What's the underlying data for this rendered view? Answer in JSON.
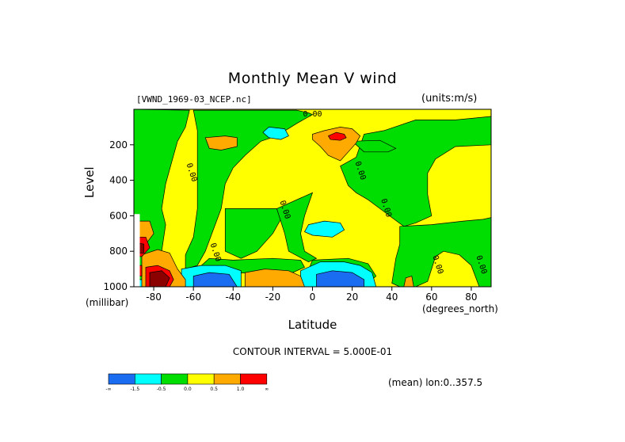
{
  "title": "Monthly Mean V wind",
  "dataset": "[VWND_1969-03_NCEP.nc]",
  "units": "(units:m/s)",
  "footer": {
    "contour_interval": "CONTOUR INTERVAL = 5.000E-01",
    "mean_note": "(mean) lon:0..357.5"
  },
  "colors": {
    "blue": "#1a6cf0",
    "cyan": "#00ffff",
    "green": "#00dd00",
    "yellow": "#ffff00",
    "orange": "#ffaa00",
    "red": "#ff0000",
    "darkred": "#8b0000"
  },
  "chart_data": {
    "type": "heatmap",
    "title": "Monthly Mean V wind",
    "xlabel": "Latitude",
    "x_unit": "(degrees_north)",
    "ylabel": "Level",
    "y_unit": "(millibar)",
    "xlim": [
      -90,
      90
    ],
    "ylim": [
      1000,
      0
    ],
    "x_ticks": [
      -80,
      -60,
      -40,
      -20,
      0,
      20,
      40,
      60,
      80
    ],
    "x_tick_labels": [
      "-80",
      "-60",
      "-40",
      "-20",
      "0",
      "20",
      "40",
      "60",
      "80"
    ],
    "y_ticks": [
      200,
      400,
      600,
      800,
      1000
    ],
    "y_tick_labels": [
      "200",
      "400",
      "600",
      "800",
      "1000"
    ],
    "contour_labels": [
      {
        "x": 0,
        "y": 40,
        "text": "0.00"
      },
      {
        "x": -62,
        "y": 360,
        "text": "0.00"
      },
      {
        "x": 23,
        "y": 350,
        "text": "0.00"
      },
      {
        "x": -15,
        "y": 570,
        "text": "0.00"
      },
      {
        "x": 36,
        "y": 560,
        "text": "0.00"
      },
      {
        "x": -50,
        "y": 810,
        "text": "0.00"
      },
      {
        "x": 62,
        "y": 880,
        "text": "0.00"
      },
      {
        "x": 84,
        "y": 880,
        "text": "0.00"
      }
    ],
    "colorbar": {
      "labels": [
        "-∞",
        "-1.5",
        "-0.5",
        "0.0",
        "0.5",
        "1.0",
        "∞"
      ],
      "colors": [
        "#1a6cf0",
        "#00ffff",
        "#00dd00",
        "#ffff00",
        "#ffaa00",
        "#ff0000"
      ]
    },
    "regions": [
      {
        "fill": "yellow",
        "points": [
          [
            -90,
            0
          ],
          [
            90,
            0
          ],
          [
            90,
            1000
          ],
          [
            -90,
            1000
          ]
        ]
      },
      {
        "fill": "green",
        "points": [
          [
            -90,
            0
          ],
          [
            -62,
            5
          ],
          [
            -64,
            100
          ],
          [
            -68,
            180
          ],
          [
            -70,
            260
          ],
          [
            -74,
            420
          ],
          [
            -76,
            560
          ],
          [
            -74,
            650
          ],
          [
            -76,
            800
          ],
          [
            -80,
            900
          ],
          [
            -86,
            960
          ],
          [
            -90,
            960
          ]
        ]
      },
      {
        "fill": "green",
        "points": [
          [
            -60,
            5
          ],
          [
            -8,
            5
          ],
          [
            -2,
            20
          ],
          [
            0,
            30
          ],
          [
            -8,
            80
          ],
          [
            -18,
            150
          ],
          [
            -26,
            180
          ],
          [
            -34,
            260
          ],
          [
            -40,
            330
          ],
          [
            -44,
            420
          ],
          [
            -46,
            560
          ],
          [
            -50,
            680
          ],
          [
            -54,
            800
          ],
          [
            -58,
            880
          ],
          [
            -64,
            900
          ],
          [
            -64,
            820
          ],
          [
            -60,
            720
          ],
          [
            -58,
            560
          ],
          [
            -58,
            360
          ],
          [
            -58,
            250
          ],
          [
            -58,
            120
          ]
        ]
      },
      {
        "fill": "green",
        "points": [
          [
            -44,
            560
          ],
          [
            -18,
            560
          ],
          [
            -16,
            620
          ],
          [
            -20,
            700
          ],
          [
            -28,
            800
          ],
          [
            -36,
            840
          ],
          [
            -44,
            800
          ]
        ]
      },
      {
        "fill": "green",
        "points": [
          [
            -52,
            840
          ],
          [
            -40,
            850
          ],
          [
            -20,
            840
          ],
          [
            -6,
            850
          ],
          [
            -4,
            890
          ],
          [
            -10,
            920
          ],
          [
            -30,
            920
          ],
          [
            -52,
            930
          ],
          [
            -58,
            900
          ]
        ]
      },
      {
        "fill": "green",
        "points": [
          [
            -18,
            560
          ],
          [
            -14,
            540
          ],
          [
            -6,
            500
          ],
          [
            0,
            470
          ],
          [
            -4,
            600
          ],
          [
            -6,
            700
          ],
          [
            -4,
            800
          ],
          [
            2,
            840
          ],
          [
            -2,
            860
          ],
          [
            -12,
            800
          ],
          [
            -14,
            700
          ]
        ]
      },
      {
        "fill": "green",
        "points": [
          [
            14,
            320
          ],
          [
            22,
            270
          ],
          [
            26,
            140
          ],
          [
            36,
            120
          ],
          [
            52,
            60
          ],
          [
            72,
            60
          ],
          [
            90,
            40
          ],
          [
            90,
            200
          ],
          [
            72,
            210
          ],
          [
            62,
            280
          ],
          [
            58,
            360
          ],
          [
            58,
            480
          ],
          [
            60,
            600
          ],
          [
            52,
            640
          ],
          [
            46,
            660
          ],
          [
            40,
            610
          ],
          [
            34,
            560
          ],
          [
            28,
            510
          ],
          [
            22,
            470
          ],
          [
            18,
            430
          ]
        ]
      },
      {
        "fill": "green",
        "points": [
          [
            44,
            660
          ],
          [
            60,
            650
          ],
          [
            76,
            630
          ],
          [
            86,
            620
          ],
          [
            90,
            610
          ],
          [
            90,
            1000
          ],
          [
            84,
            1000
          ],
          [
            80,
            880
          ],
          [
            74,
            820
          ],
          [
            66,
            800
          ],
          [
            62,
            830
          ],
          [
            60,
            900
          ],
          [
            58,
            970
          ],
          [
            52,
            1000
          ],
          [
            44,
            1000
          ],
          [
            40,
            980
          ],
          [
            42,
            840
          ],
          [
            44,
            760
          ]
        ]
      },
      {
        "fill": "green",
        "points": [
          [
            0,
            850
          ],
          [
            18,
            840
          ],
          [
            28,
            870
          ],
          [
            32,
            940
          ],
          [
            28,
            980
          ],
          [
            20,
            1000
          ],
          [
            0,
            1000
          ],
          [
            -4,
            960
          ]
        ]
      },
      {
        "fill": "green",
        "points": [
          [
            20,
            180
          ],
          [
            34,
            175
          ],
          [
            42,
            220
          ],
          [
            38,
            240
          ],
          [
            26,
            240
          ]
        ]
      },
      {
        "fill": "cyan",
        "points": [
          [
            -22,
            100
          ],
          [
            -14,
            110
          ],
          [
            -12,
            150
          ],
          [
            -16,
            170
          ],
          [
            -22,
            160
          ],
          [
            -25,
            130
          ]
        ]
      },
      {
        "fill": "cyan",
        "points": [
          [
            -2,
            650
          ],
          [
            6,
            630
          ],
          [
            14,
            640
          ],
          [
            16,
            680
          ],
          [
            10,
            720
          ],
          [
            0,
            710
          ],
          [
            -4,
            690
          ]
        ]
      },
      {
        "fill": "cyan",
        "points": [
          [
            -66,
            900
          ],
          [
            -56,
            880
          ],
          [
            -44,
            880
          ],
          [
            -36,
            910
          ],
          [
            -36,
            1000
          ],
          [
            -66,
            1000
          ]
        ]
      },
      {
        "fill": "cyan",
        "points": [
          [
            -6,
            910
          ],
          [
            4,
            860
          ],
          [
            16,
            860
          ],
          [
            24,
            880
          ],
          [
            30,
            920
          ],
          [
            32,
            1000
          ],
          [
            -6,
            1000
          ]
        ]
      },
      {
        "fill": "cyan",
        "points": [
          [
            -90,
            960
          ],
          [
            -84,
            960
          ],
          [
            -84,
            1000
          ],
          [
            -90,
            1000
          ]
        ]
      },
      {
        "fill": "blue",
        "points": [
          [
            -60,
            940
          ],
          [
            -52,
            920
          ],
          [
            -42,
            930
          ],
          [
            -38,
            1000
          ],
          [
            -60,
            1000
          ]
        ]
      },
      {
        "fill": "blue",
        "points": [
          [
            2,
            930
          ],
          [
            10,
            910
          ],
          [
            20,
            920
          ],
          [
            26,
            960
          ],
          [
            26,
            1000
          ],
          [
            2,
            1000
          ]
        ]
      },
      {
        "fill": "orange",
        "points": [
          [
            -54,
            160
          ],
          [
            -44,
            150
          ],
          [
            -38,
            160
          ],
          [
            -38,
            210
          ],
          [
            -46,
            230
          ],
          [
            -52,
            220
          ]
        ]
      },
      {
        "fill": "orange",
        "points": [
          [
            6,
            120
          ],
          [
            14,
            100
          ],
          [
            20,
            110
          ],
          [
            24,
            150
          ],
          [
            22,
            190
          ],
          [
            18,
            240
          ],
          [
            14,
            290
          ],
          [
            8,
            260
          ],
          [
            4,
            210
          ],
          [
            0,
            170
          ],
          [
            0,
            140
          ]
        ]
      },
      {
        "fill": "orange",
        "points": [
          [
            -34,
            920
          ],
          [
            -24,
            900
          ],
          [
            -12,
            910
          ],
          [
            -6,
            940
          ],
          [
            -4,
            1000
          ],
          [
            -34,
            1000
          ]
        ]
      },
      {
        "fill": "orange",
        "points": [
          [
            -86,
            820
          ],
          [
            -78,
            790
          ],
          [
            -72,
            810
          ],
          [
            -68,
            900
          ],
          [
            -64,
            960
          ],
          [
            -64,
            1000
          ],
          [
            -86,
            1000
          ]
        ]
      },
      {
        "fill": "orange",
        "points": [
          [
            -90,
            630
          ],
          [
            -82,
            630
          ],
          [
            -80,
            700
          ],
          [
            -84,
            760
          ],
          [
            -90,
            760
          ]
        ]
      },
      {
        "fill": "orange",
        "points": [
          [
            47,
            950
          ],
          [
            50,
            940
          ],
          [
            51,
            1000
          ],
          [
            46,
            1000
          ]
        ]
      },
      {
        "fill": "red",
        "points": [
          [
            -90,
            720
          ],
          [
            -84,
            720
          ],
          [
            -82,
            780
          ],
          [
            -86,
            830
          ],
          [
            -90,
            830
          ]
        ]
      },
      {
        "fill": "red",
        "points": [
          [
            -84,
            890
          ],
          [
            -78,
            880
          ],
          [
            -72,
            910
          ],
          [
            -70,
            960
          ],
          [
            -72,
            1000
          ],
          [
            -84,
            1000
          ]
        ]
      },
      {
        "fill": "red",
        "points": [
          [
            8,
            150
          ],
          [
            12,
            130
          ],
          [
            16,
            140
          ],
          [
            17,
            160
          ],
          [
            14,
            175
          ],
          [
            9,
            170
          ]
        ]
      },
      {
        "fill": "red",
        "points": [
          [
            -90,
            880
          ],
          [
            -86,
            880
          ],
          [
            -86,
            940
          ],
          [
            -90,
            940
          ]
        ]
      },
      {
        "fill": "darkred",
        "points": [
          [
            -90,
            750
          ],
          [
            -85,
            760
          ],
          [
            -85,
            810
          ],
          [
            -90,
            810
          ]
        ]
      },
      {
        "fill": "darkred",
        "points": [
          [
            -82,
            920
          ],
          [
            -76,
            910
          ],
          [
            -72,
            950
          ],
          [
            -74,
            1000
          ],
          [
            -82,
            1000
          ]
        ]
      },
      {
        "fill": "white",
        "points": [
          [
            -92,
            590
          ],
          [
            -87,
            590
          ],
          [
            -87,
            1000
          ],
          [
            -92,
            1000
          ]
        ]
      }
    ]
  }
}
